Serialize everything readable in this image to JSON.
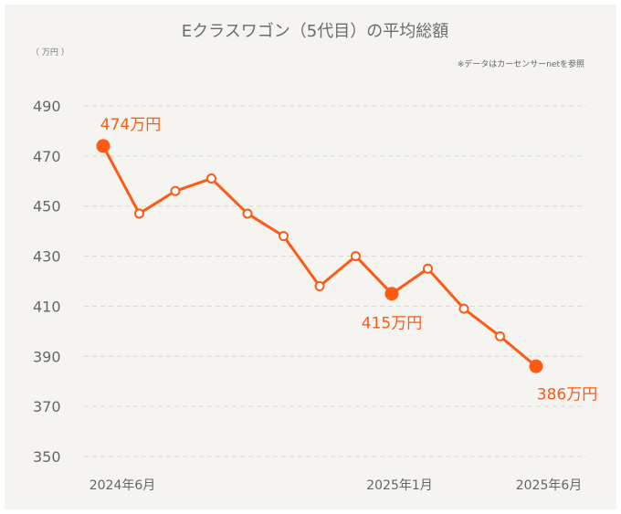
{
  "chart_data": {
    "type": "line",
    "title": "Eクラスワゴン（5代目）の平均総額",
    "unit_label": "（ 万円 ）",
    "note": "※データはカーセンサーnetを参照",
    "x": [
      "2024-06",
      "2024-07",
      "2024-08",
      "2024-09",
      "2024-10",
      "2024-11",
      "2024-12",
      "2025-01",
      "2025-02",
      "2025-03",
      "2025-04",
      "2025-05",
      "2025-06"
    ],
    "values": [
      474,
      447,
      456,
      461,
      447,
      438,
      418,
      430,
      415,
      425,
      409,
      398,
      386
    ],
    "x_tick_labels": [
      {
        "index": 0,
        "label": "2024年6月"
      },
      {
        "index": 7,
        "label": "2025年1月"
      },
      {
        "index": 12,
        "label": "2025年6月"
      }
    ],
    "y_ticks": [
      490,
      470,
      450,
      430,
      410,
      390,
      370,
      350
    ],
    "ylim": [
      350,
      490
    ],
    "grid": true,
    "highlights": [
      {
        "index": 0,
        "label": "474万円"
      },
      {
        "index": 8,
        "label": "415万円"
      },
      {
        "index": 12,
        "label": "386万円"
      }
    ],
    "line_color": "#ff5a14",
    "title_color": "#6b6b6b",
    "background": "#f5f4f0"
  }
}
